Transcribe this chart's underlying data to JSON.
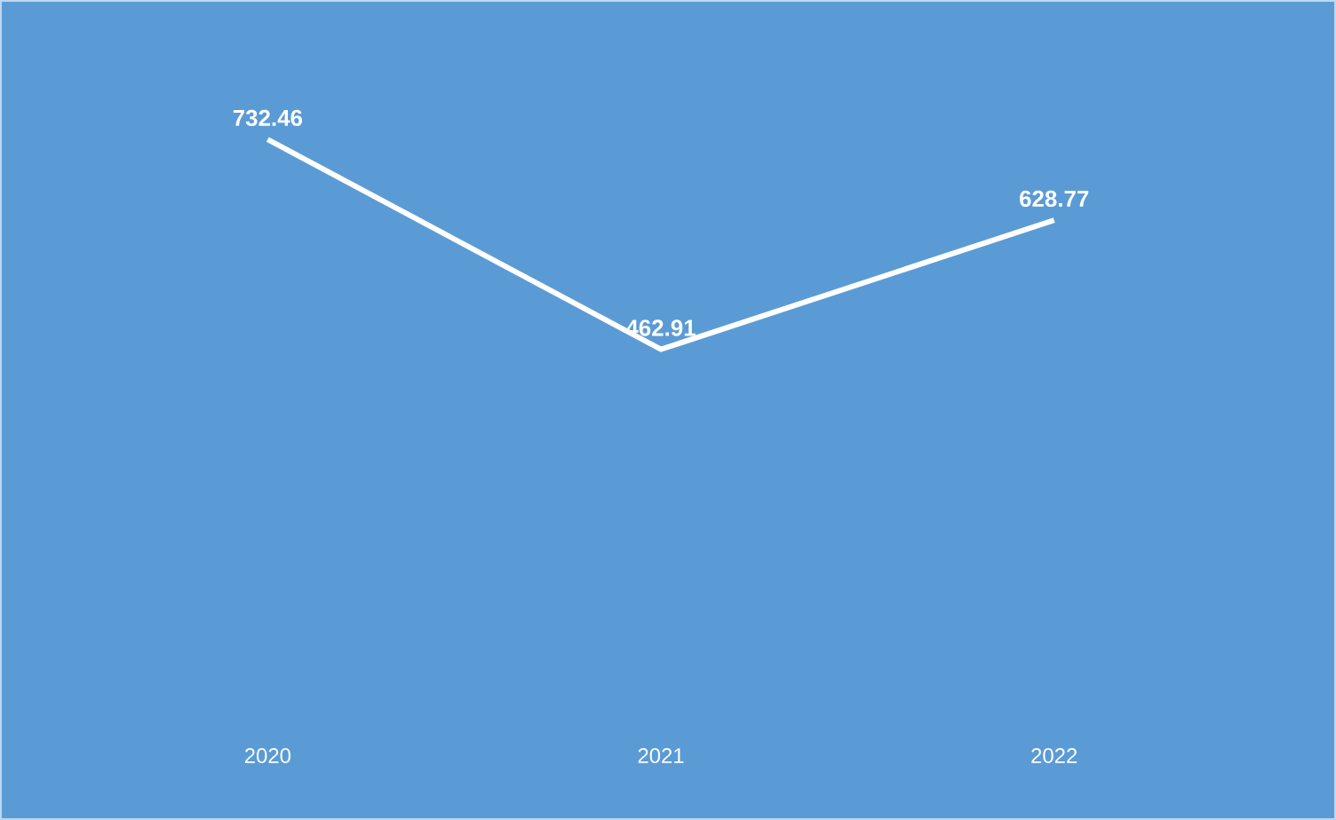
{
  "chart_data": {
    "type": "line",
    "categories": [
      "2020",
      "2021",
      "2022"
    ],
    "series": [
      {
        "color": "#ffffff",
        "values": [
          732.46,
          462.91,
          628.77
        ]
      }
    ],
    "data_labels": true,
    "marker": "none",
    "line_style": "solid"
  }
}
